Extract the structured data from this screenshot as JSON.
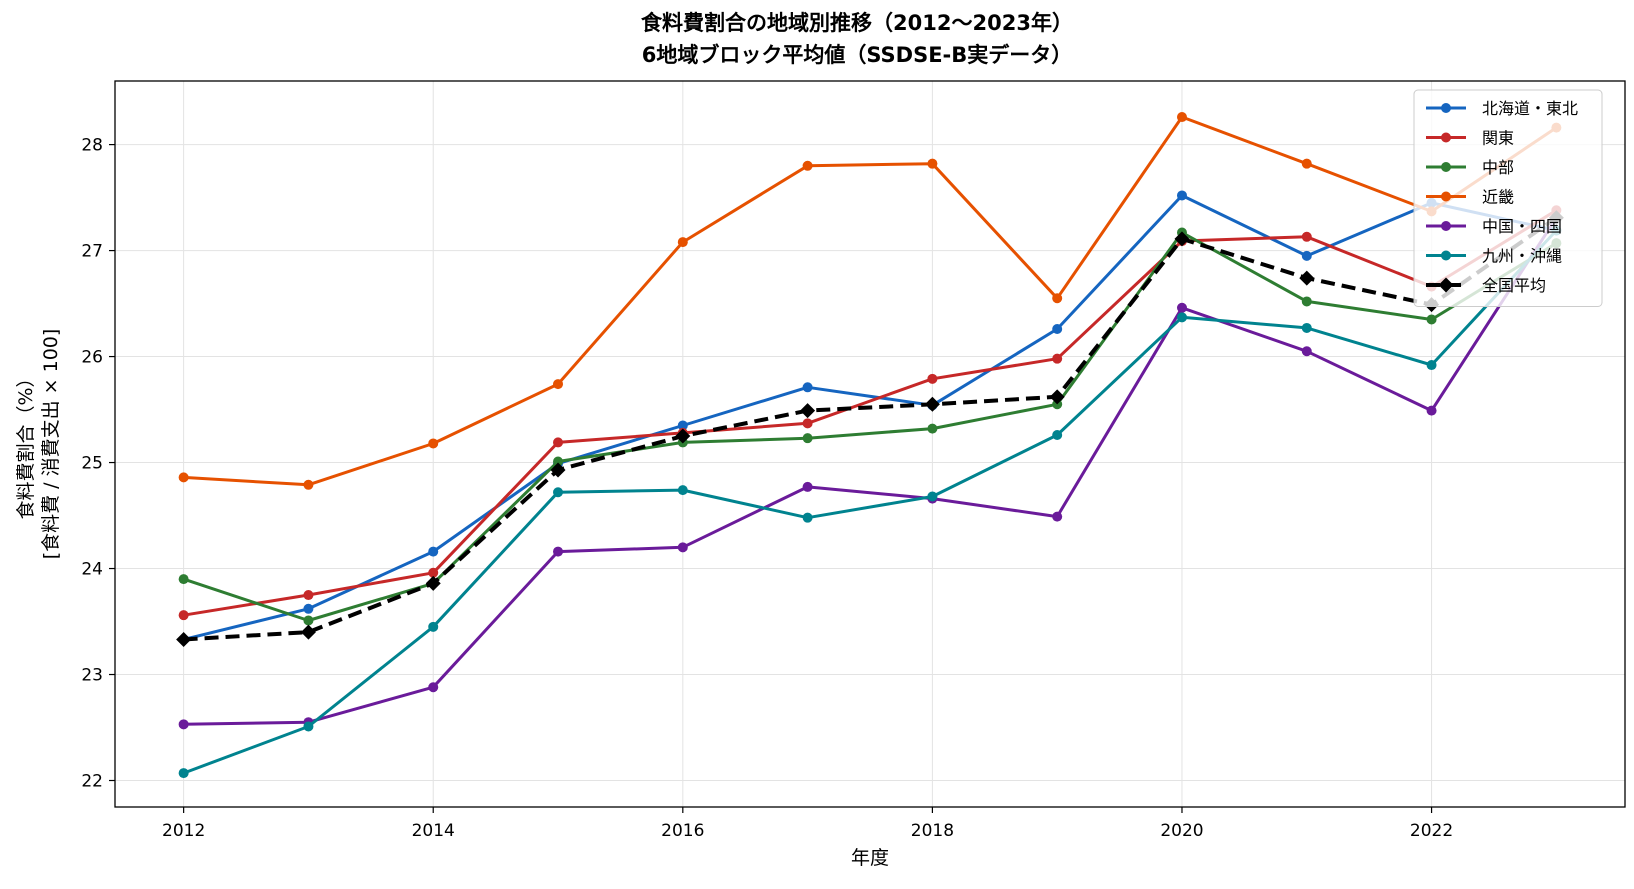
{
  "chart_data": {
    "type": "line",
    "title": "食料費割合の地域別推移（2012〜2023年）",
    "subtitle": "6地域ブロック平均値（SSDSE-B実データ）",
    "xlabel": "年度",
    "ylabel": "食料費割合（%）",
    "ylabel2": "[食料費 / 消費支出 × 100]",
    "x": [
      2012,
      2013,
      2014,
      2015,
      2016,
      2017,
      2018,
      2019,
      2020,
      2021,
      2022,
      2023
    ],
    "xticks": [
      "2012",
      "2014",
      "2016",
      "2018",
      "2020",
      "2022"
    ],
    "yticks": [
      "22",
      "23",
      "24",
      "25",
      "26",
      "27",
      "28"
    ],
    "xlim": [
      2011.45,
      2023.55
    ],
    "ylim": [
      21.75,
      28.6
    ],
    "grid": true,
    "legend_position": "top-right",
    "series": [
      {
        "name": "北海道・東北",
        "color": "#1565c0",
        "marker": "circle",
        "dash": false,
        "values": [
          23.33,
          23.62,
          24.16,
          24.99,
          25.35,
          25.71,
          25.54,
          26.26,
          27.52,
          26.95,
          27.45,
          27.19
        ]
      },
      {
        "name": "関東",
        "color": "#c62828",
        "marker": "circle",
        "dash": false,
        "values": [
          23.56,
          23.75,
          23.96,
          25.19,
          25.28,
          25.37,
          25.79,
          25.98,
          27.09,
          27.13,
          26.66,
          27.38
        ]
      },
      {
        "name": "中部",
        "color": "#2e7d32",
        "marker": "circle",
        "dash": false,
        "values": [
          23.9,
          23.51,
          23.86,
          25.01,
          25.19,
          25.23,
          25.32,
          25.55,
          27.17,
          26.52,
          26.35,
          27.07
        ]
      },
      {
        "name": "近畿",
        "color": "#e65100",
        "marker": "circle",
        "dash": false,
        "values": [
          24.86,
          24.79,
          25.18,
          25.74,
          27.08,
          27.8,
          27.82,
          26.55,
          28.26,
          27.82,
          27.37,
          28.16
        ]
      },
      {
        "name": "中国・四国",
        "color": "#6a1b9a",
        "marker": "circle",
        "dash": false,
        "values": [
          22.53,
          22.55,
          22.88,
          24.16,
          24.2,
          24.77,
          24.66,
          24.49,
          26.46,
          26.05,
          25.49,
          27.31
        ]
      },
      {
        "name": "九州・沖縄",
        "color": "#00838f",
        "marker": "circle",
        "dash": false,
        "values": [
          22.07,
          22.51,
          23.45,
          24.72,
          24.74,
          24.48,
          24.68,
          25.26,
          26.37,
          26.27,
          25.92,
          27.19
        ]
      },
      {
        "name": "全国平均",
        "color": "#000000",
        "marker": "diamond",
        "dash": true,
        "values": [
          23.33,
          23.4,
          23.86,
          24.93,
          25.25,
          25.49,
          25.55,
          25.62,
          27.11,
          26.74,
          26.49,
          27.31
        ]
      }
    ]
  }
}
